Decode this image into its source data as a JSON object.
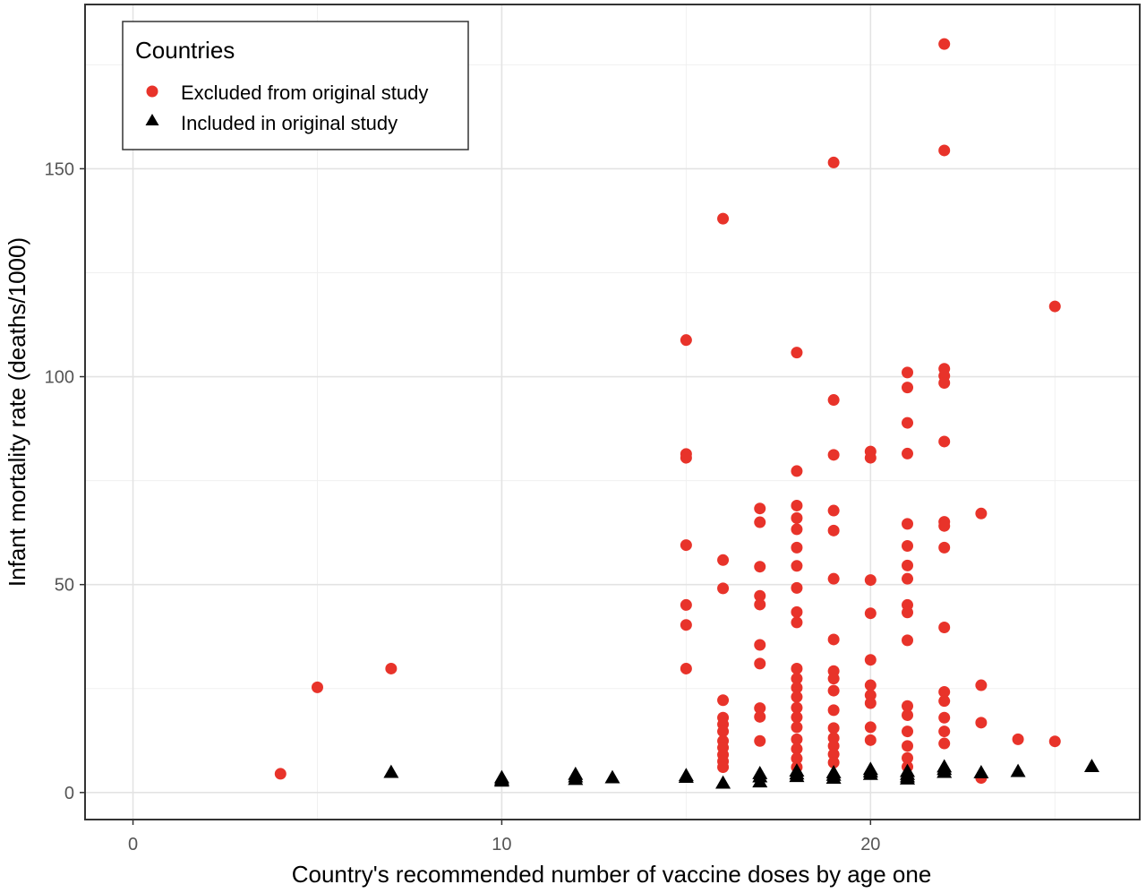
{
  "chart_data": {
    "type": "scatter",
    "title": "",
    "xlabel": "Country's recommended number of vaccine doses by age one",
    "ylabel": "Infant mortality rate (deaths/1000)",
    "xlim": [
      -1.3,
      27.3
    ],
    "ylim": [
      -6.5,
      189.5
    ],
    "x_ticks": [
      0,
      10,
      20
    ],
    "y_ticks": [
      0,
      50,
      100,
      150
    ],
    "x_tick_labels": [
      "0",
      "10",
      "20"
    ],
    "y_tick_labels": [
      "0",
      "50",
      "100",
      "150"
    ],
    "grid": true,
    "legend": {
      "title": "Countries",
      "position": "top-left",
      "items": [
        {
          "label": "Excluded from original study",
          "marker": "circle",
          "color": "#e8332a"
        },
        {
          "label": "Included in original study",
          "marker": "triangle",
          "color": "#000000"
        }
      ]
    },
    "series": [
      {
        "name": "Excluded from original study",
        "marker": "circle",
        "color": "#e8332a",
        "points": [
          [
            4,
            4.5
          ],
          [
            5,
            25.3
          ],
          [
            7,
            29.8
          ],
          [
            15,
            108.8
          ],
          [
            15,
            81.4
          ],
          [
            15,
            80.5
          ],
          [
            15,
            59.5
          ],
          [
            15,
            45.1
          ],
          [
            15,
            40.3
          ],
          [
            15,
            29.8
          ],
          [
            16,
            138
          ],
          [
            16,
            55.9
          ],
          [
            16,
            49.1
          ],
          [
            16,
            22.2
          ],
          [
            16,
            18
          ],
          [
            16,
            16.4
          ],
          [
            16,
            14.7
          ],
          [
            16,
            12.4
          ],
          [
            16,
            10.8
          ],
          [
            16,
            9.1
          ],
          [
            16,
            7.5
          ],
          [
            16,
            6.1
          ],
          [
            17,
            68.3
          ],
          [
            17,
            65
          ],
          [
            17,
            54.3
          ],
          [
            17,
            47.3
          ],
          [
            17,
            45.2
          ],
          [
            17,
            35.5
          ],
          [
            17,
            31
          ],
          [
            17,
            20.3
          ],
          [
            17,
            18.2
          ],
          [
            17,
            12.4
          ],
          [
            18,
            105.8
          ],
          [
            18,
            77.3
          ],
          [
            18,
            69
          ],
          [
            18,
            66
          ],
          [
            18,
            63.3
          ],
          [
            18,
            58.9
          ],
          [
            18,
            54.5
          ],
          [
            18,
            49.2
          ],
          [
            18,
            43.4
          ],
          [
            18,
            40.9
          ],
          [
            18,
            29.8
          ],
          [
            18,
            27.4
          ],
          [
            18,
            25.2
          ],
          [
            18,
            23
          ],
          [
            18,
            20.4
          ],
          [
            18,
            18.1
          ],
          [
            18,
            15.7
          ],
          [
            18,
            12.8
          ],
          [
            18,
            10.5
          ],
          [
            18,
            8.2
          ],
          [
            18,
            6.1
          ],
          [
            19,
            151.5
          ],
          [
            19,
            94.4
          ],
          [
            19,
            81.2
          ],
          [
            19,
            67.8
          ],
          [
            19,
            63
          ],
          [
            19,
            51.4
          ],
          [
            19,
            36.8
          ],
          [
            19,
            29.2
          ],
          [
            19,
            27.4
          ],
          [
            19,
            24.5
          ],
          [
            19,
            19.8
          ],
          [
            19,
            15.5
          ],
          [
            19,
            13.1
          ],
          [
            19,
            11.2
          ],
          [
            19,
            9.2
          ],
          [
            19,
            7.2
          ],
          [
            20,
            82
          ],
          [
            20,
            80.5
          ],
          [
            20,
            51.1
          ],
          [
            20,
            43.1
          ],
          [
            20,
            31.9
          ],
          [
            20,
            25.8
          ],
          [
            20,
            23.4
          ],
          [
            20,
            21.5
          ],
          [
            20,
            15.7
          ],
          [
            20,
            12.6
          ],
          [
            21,
            101
          ],
          [
            21,
            97.4
          ],
          [
            21,
            88.9
          ],
          [
            21,
            81.5
          ],
          [
            21,
            64.6
          ],
          [
            21,
            59.3
          ],
          [
            21,
            54.6
          ],
          [
            21,
            51.4
          ],
          [
            21,
            45.1
          ],
          [
            21,
            43.3
          ],
          [
            21,
            36.6
          ],
          [
            21,
            20.8
          ],
          [
            21,
            18.6
          ],
          [
            21,
            14.7
          ],
          [
            21,
            11.2
          ],
          [
            21,
            8.3
          ],
          [
            21,
            6.2
          ],
          [
            22,
            180
          ],
          [
            22,
            154.4
          ],
          [
            22,
            101.9
          ],
          [
            22,
            100.2
          ],
          [
            22,
            98.5
          ],
          [
            22,
            84.4
          ],
          [
            22,
            65.1
          ],
          [
            22,
            64.1
          ],
          [
            22,
            58.9
          ],
          [
            22,
            39.7
          ],
          [
            22,
            24.2
          ],
          [
            22,
            22
          ],
          [
            22,
            18
          ],
          [
            22,
            14.7
          ],
          [
            22,
            11.8
          ],
          [
            23,
            67.1
          ],
          [
            23,
            25.8
          ],
          [
            23,
            16.8
          ],
          [
            23,
            3.5
          ],
          [
            24,
            12.8
          ],
          [
            25,
            116.9
          ],
          [
            25,
            12.3
          ]
        ]
      },
      {
        "name": "Included in original study",
        "marker": "triangle",
        "color": "#000000",
        "points": [
          [
            7,
            4.9
          ],
          [
            10,
            3.6
          ],
          [
            10,
            3.1
          ],
          [
            10,
            2.8
          ],
          [
            12,
            4.4
          ],
          [
            12,
            3.8
          ],
          [
            12,
            3.2
          ],
          [
            13,
            3.6
          ],
          [
            15,
            4.1
          ],
          [
            15,
            3.7
          ],
          [
            16,
            2.3
          ],
          [
            17,
            4.6
          ],
          [
            17,
            3.8
          ],
          [
            17,
            2.6
          ],
          [
            18,
            5.2
          ],
          [
            18,
            4.5
          ],
          [
            18,
            3.9
          ],
          [
            19,
            4.8
          ],
          [
            19,
            4.2
          ],
          [
            19,
            3.5
          ],
          [
            20,
            5.6
          ],
          [
            20,
            5
          ],
          [
            20,
            4.4
          ],
          [
            21,
            5.1
          ],
          [
            21,
            4.4
          ],
          [
            21,
            3.8
          ],
          [
            21,
            3.3
          ],
          [
            22,
            6.2
          ],
          [
            22,
            5.6
          ],
          [
            22,
            4.9
          ],
          [
            23,
            4.8
          ],
          [
            24,
            5.1
          ],
          [
            26,
            6.3
          ]
        ]
      }
    ]
  }
}
